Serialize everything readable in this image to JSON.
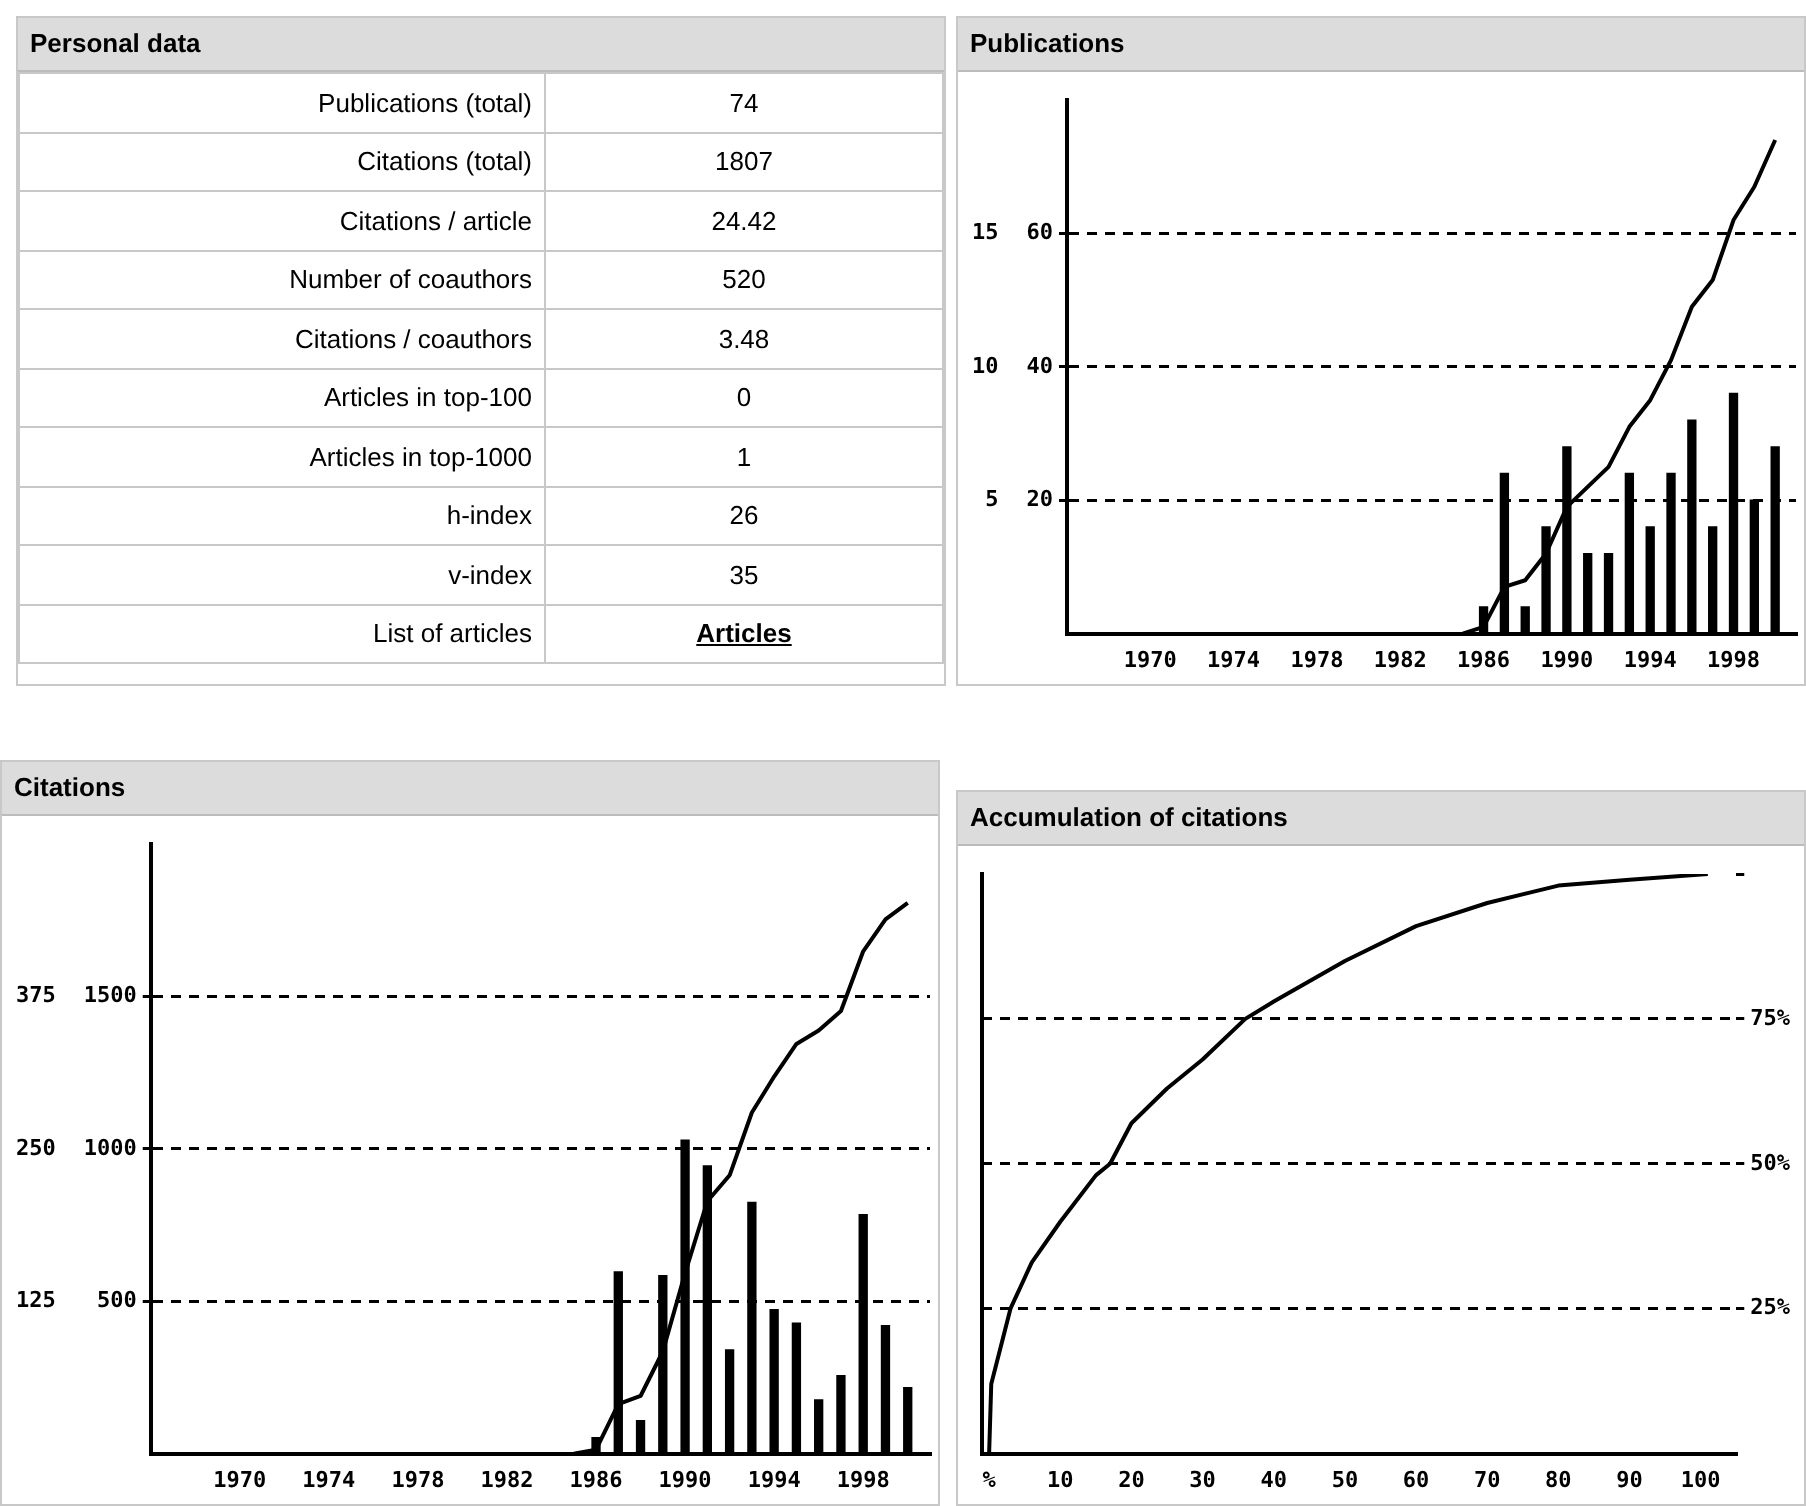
{
  "chart_data": [
    {
      "type": "other",
      "title": "Personal data",
      "categories": [
        "Publications (total)",
        "Citations (total)",
        "Citations / article",
        "Number of coauthors",
        "Citations / coauthors",
        "Articles in top-100",
        "Articles in top-1000",
        "h-index",
        "v-index",
        "List of articles"
      ],
      "value_labels": [
        "74",
        "1807",
        "24.42",
        "520",
        "3.48",
        "0",
        "1",
        "26",
        "35",
        "Articles"
      ]
    },
    {
      "type": "bar",
      "title": "Publications",
      "x": [
        1986,
        1987,
        1988,
        1989,
        1990,
        1991,
        1992,
        1993,
        1994,
        1995,
        1996,
        1997,
        1998,
        1999,
        2000
      ],
      "series": [
        {
          "type": "bar",
          "axis": "y2",
          "color": "#000000",
          "values": [
            1,
            6,
            1,
            4,
            7,
            3,
            3,
            6,
            4,
            6,
            8,
            4,
            9,
            5,
            7
          ]
        },
        {
          "type": "line",
          "color": "#000000",
          "x": [
            1985,
            1986,
            1987,
            1988,
            1989,
            1990,
            1991,
            1992,
            1993,
            1994,
            1995,
            1996,
            1997,
            1998,
            1999,
            2000
          ],
          "values": [
            0,
            1,
            7,
            8,
            12,
            19,
            22,
            25,
            31,
            35,
            41,
            49,
            53,
            62,
            67,
            74
          ]
        }
      ],
      "xlim": [
        1966,
        2001
      ],
      "xticks": [
        1970,
        1974,
        1978,
        1982,
        1986,
        1990,
        1994,
        1998
      ],
      "ylim": [
        0,
        80
      ],
      "yticks": [
        20,
        40,
        60
      ],
      "y2lim": [
        0,
        20
      ],
      "y2ticks": [
        5,
        10,
        15
      ],
      "grid": "y",
      "marker": "none"
    },
    {
      "type": "bar",
      "title": "Citations",
      "x": [
        1986,
        1987,
        1988,
        1989,
        1990,
        1991,
        1992,
        1993,
        1994,
        1995,
        1996,
        1997,
        1998,
        1999,
        2000
      ],
      "series": [
        {
          "type": "bar",
          "axis": "y2",
          "color": "#000000",
          "values": [
            13,
            149,
            27,
            146,
            257,
            236,
            85,
            206,
            118,
            107,
            44,
            64,
            196,
            105,
            54
          ]
        },
        {
          "type": "line",
          "color": "#000000",
          "x": [
            1985,
            1986,
            1987,
            1988,
            1989,
            1990,
            1991,
            1992,
            1993,
            1994,
            1995,
            1996,
            1997,
            1998,
            1999,
            2000
          ],
          "values": [
            0,
            13,
            162,
            189,
            335,
            592,
            828,
            913,
            1119,
            1237,
            1344,
            1388,
            1452,
            1648,
            1753,
            1807
          ]
        }
      ],
      "xlim": [
        1966,
        2001
      ],
      "xticks": [
        1970,
        1974,
        1978,
        1982,
        1986,
        1990,
        1994,
        1998
      ],
      "ylim": [
        0,
        2000
      ],
      "yticks": [
        500,
        1000,
        1500
      ],
      "y2lim": [
        0,
        500
      ],
      "y2ticks": [
        125,
        250,
        375
      ],
      "grid": "y",
      "marker": "none"
    },
    {
      "type": "line",
      "title": "Accumulation of citations",
      "series": [
        {
          "color": "#000000",
          "x": [
            0,
            0.3,
            3,
            6,
            10,
            15,
            17,
            20,
            25,
            30,
            36,
            40,
            50,
            60,
            70,
            80,
            90,
            101
          ],
          "values": [
            0,
            12,
            25,
            33,
            40,
            48,
            50,
            57,
            63,
            68,
            75,
            78,
            85,
            91,
            95,
            98,
            99,
            100
          ]
        }
      ],
      "xlim": [
        -1,
        105
      ],
      "xticks": [
        {
          "value": 0,
          "label": "%"
        },
        10,
        20,
        30,
        40,
        50,
        60,
        70,
        80,
        90,
        100
      ],
      "ylim": [
        0,
        100
      ],
      "yticks": [
        {
          "value": 25,
          "label": "25%"
        },
        {
          "value": 50,
          "label": "50%"
        },
        {
          "value": 75,
          "label": "75%"
        },
        {
          "value": 100,
          "label": null
        }
      ],
      "grid": "y",
      "marker": "none"
    }
  ]
}
